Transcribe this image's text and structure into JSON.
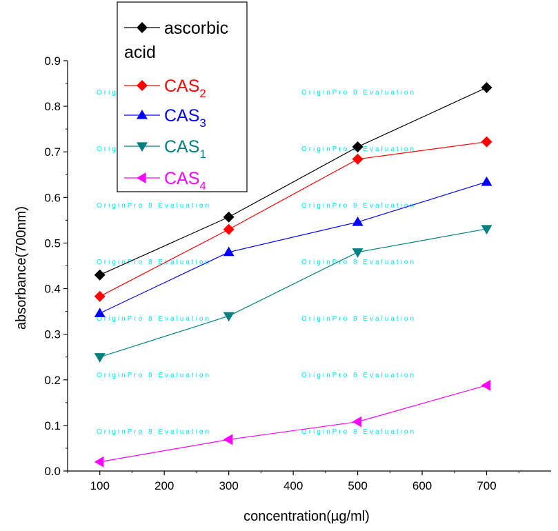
{
  "chart_data": {
    "type": "line",
    "title": "",
    "xlabel": "concentration(µg/ml)",
    "ylabel": "absorbance(700nm)",
    "xlim": [
      50,
      800
    ],
    "ylim": [
      0.0,
      0.9
    ],
    "xticks": [
      100,
      200,
      300,
      400,
      500,
      600,
      700
    ],
    "xtick_labels": [
      "100",
      "200",
      "300",
      "400",
      "500",
      "600",
      "700"
    ],
    "yticks": [
      0.0,
      0.1,
      0.2,
      0.3,
      0.4,
      0.5,
      0.6,
      0.7,
      0.8,
      0.9
    ],
    "ytick_labels": [
      "0.0",
      "0.1",
      "0.2",
      "0.3",
      "0.4",
      "0.5",
      "0.6",
      "0.7",
      "0.8",
      "0.9"
    ],
    "grid": false,
    "legend_position": "top-left",
    "x": [
      100,
      300,
      500,
      700
    ],
    "series": [
      {
        "name": "ascorbic acid",
        "name_line1": "ascorbic",
        "name_line2": "acid",
        "name_sub": "",
        "color": "#000000",
        "marker": "diamond",
        "values": [
          0.43,
          0.557,
          0.711,
          0.841
        ]
      },
      {
        "name": "CAS2",
        "name_line1": "CAS",
        "name_line2": "",
        "name_sub": "2",
        "color": "#ff0000",
        "marker": "diamond",
        "values": [
          0.383,
          0.53,
          0.684,
          0.722
        ]
      },
      {
        "name": "CAS3",
        "name_line1": "CAS",
        "name_line2": "",
        "name_sub": "3",
        "color": "#0000ff",
        "marker": "triangle-up",
        "values": [
          0.346,
          0.48,
          0.546,
          0.634
        ]
      },
      {
        "name": "CAS1",
        "name_line1": "CAS",
        "name_line2": "",
        "name_sub": "1",
        "color": "#008080",
        "marker": "triangle-down",
        "values": [
          0.25,
          0.34,
          0.48,
          0.531
        ]
      },
      {
        "name": "CAS4",
        "name_line1": "CAS",
        "name_line2": "",
        "name_sub": "4",
        "color": "#ff00ff",
        "marker": "triangle-left",
        "values": [
          0.02,
          0.069,
          0.108,
          0.188
        ]
      }
    ],
    "watermark": "OriginPro 8 Evaluation"
  }
}
